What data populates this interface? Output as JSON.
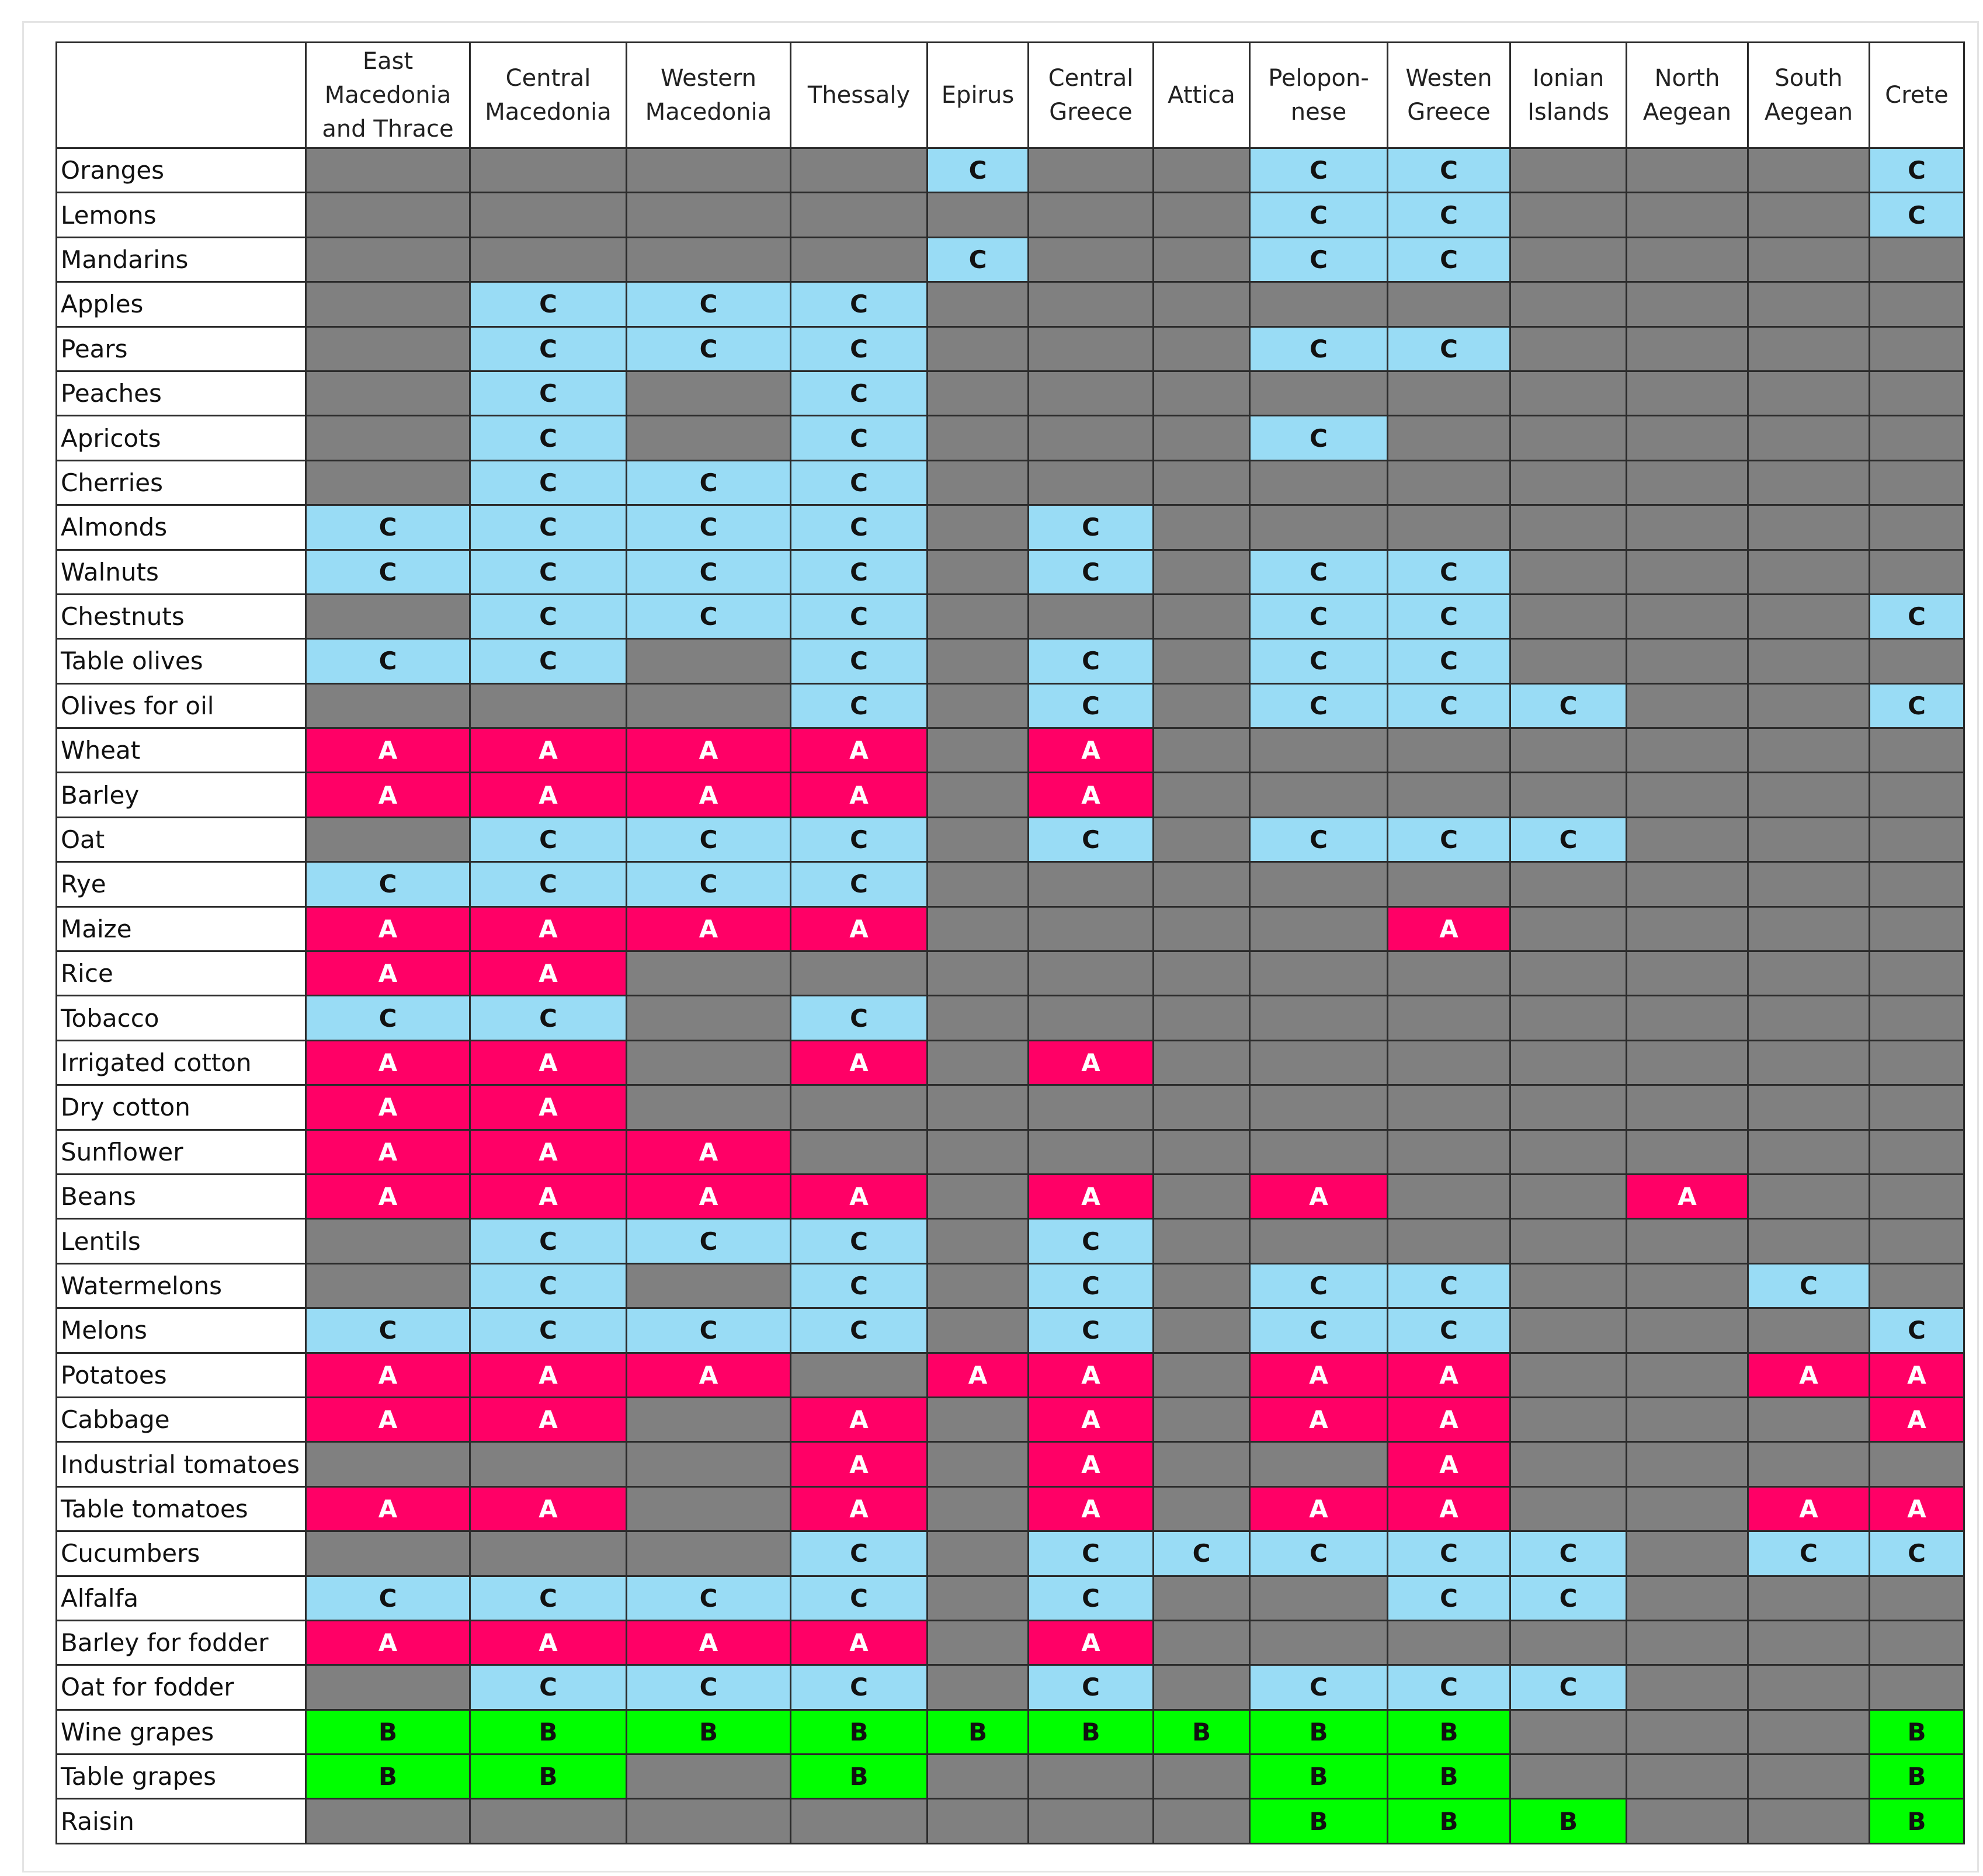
{
  "table": {
    "header": [
      "East\nMacedonia\nand Thrace",
      "Central\nMacedonia",
      "Western\nMacedonia",
      "Thessaly",
      "Epirus",
      "Central\nGreece",
      "Attica",
      "Pelopon-\nnese",
      "Westen\nGreece",
      "Ionian\nIslands",
      "North\nAegean",
      "South\nAegean",
      "Crete"
    ],
    "rows": [
      [
        "Oranges",
        null,
        null,
        null,
        null,
        "C",
        null,
        null,
        "C",
        "C",
        null,
        null,
        null,
        "C"
      ],
      [
        "Lemons",
        null,
        null,
        null,
        null,
        null,
        null,
        null,
        "C",
        "C",
        null,
        null,
        null,
        "C"
      ],
      [
        "Mandarins",
        null,
        null,
        null,
        null,
        "C",
        null,
        null,
        "C",
        "C",
        null,
        null,
        null,
        null
      ],
      [
        "Apples",
        null,
        "C",
        "C",
        "C",
        null,
        null,
        null,
        null,
        null,
        null,
        null,
        null,
        null
      ],
      [
        "Pears",
        null,
        "C",
        "C",
        "C",
        null,
        null,
        null,
        "C",
        "C",
        null,
        null,
        null,
        null
      ],
      [
        "Peaches",
        null,
        "C",
        null,
        "C",
        null,
        null,
        null,
        null,
        null,
        null,
        null,
        null,
        null
      ],
      [
        "Apricots",
        null,
        "C",
        null,
        "C",
        null,
        null,
        null,
        "C",
        null,
        null,
        null,
        null,
        null
      ],
      [
        "Cherries",
        null,
        "C",
        "C",
        "C",
        null,
        null,
        null,
        null,
        null,
        null,
        null,
        null,
        null
      ],
      [
        "Almonds",
        "C",
        "C",
        "C",
        "C",
        null,
        "C",
        null,
        null,
        null,
        null,
        null,
        null,
        null
      ],
      [
        "Walnuts",
        "C",
        "C",
        "C",
        "C",
        null,
        "C",
        null,
        "C",
        "C",
        null,
        null,
        null,
        null
      ],
      [
        "Chestnuts",
        null,
        "C",
        "C",
        "C",
        null,
        null,
        null,
        "C",
        "C",
        null,
        null,
        null,
        "C"
      ],
      [
        "Table olives",
        "C",
        "C",
        null,
        "C",
        null,
        "C",
        null,
        "C",
        "C",
        null,
        null,
        null,
        null
      ],
      [
        "Olives for oil",
        null,
        null,
        null,
        "C",
        null,
        "C",
        null,
        "C",
        "C",
        "C",
        null,
        null,
        "C"
      ],
      [
        "Wheat",
        "A",
        "A",
        "A",
        "A",
        null,
        "A",
        null,
        null,
        null,
        null,
        null,
        null,
        null
      ],
      [
        "Barley",
        "A",
        "A",
        "A",
        "A",
        null,
        "A",
        null,
        null,
        null,
        null,
        null,
        null,
        null
      ],
      [
        "Oat",
        null,
        "C",
        "C",
        "C",
        null,
        "C",
        null,
        "C",
        "C",
        "C",
        null,
        null,
        null
      ],
      [
        "Rye",
        "C",
        "C",
        "C",
        "C",
        null,
        null,
        null,
        null,
        null,
        null,
        null,
        null,
        null
      ],
      [
        "Maize",
        "A",
        "A",
        "A",
        "A",
        null,
        null,
        null,
        null,
        "A",
        null,
        null,
        null,
        null
      ],
      [
        "Rice",
        "A",
        "A",
        null,
        null,
        null,
        null,
        null,
        null,
        null,
        null,
        null,
        null,
        null
      ],
      [
        "Tobacco",
        "C",
        "C",
        null,
        "C",
        null,
        null,
        null,
        null,
        null,
        null,
        null,
        null,
        null
      ],
      [
        "Irrigated cotton",
        "A",
        "A",
        null,
        "A",
        null,
        "A",
        null,
        null,
        null,
        null,
        null,
        null,
        null
      ],
      [
        "Dry cotton",
        "A",
        "A",
        null,
        null,
        null,
        null,
        null,
        null,
        null,
        null,
        null,
        null,
        null
      ],
      [
        "Sunflower",
        "A",
        "A",
        "A",
        null,
        null,
        null,
        null,
        null,
        null,
        null,
        null,
        null,
        null
      ],
      [
        "Beans",
        "A",
        "A",
        "A",
        "A",
        null,
        "A",
        null,
        "A",
        null,
        null,
        "A",
        null,
        null
      ],
      [
        "Lentils",
        null,
        "C",
        "C",
        "C",
        null,
        "C",
        null,
        null,
        null,
        null,
        null,
        null,
        null
      ],
      [
        "Watermelons",
        null,
        "C",
        null,
        "C",
        null,
        "C",
        null,
        "C",
        "C",
        null,
        null,
        "C",
        null
      ],
      [
        "Melons",
        "C",
        "C",
        "C",
        "C",
        null,
        "C",
        null,
        "C",
        "C",
        null,
        null,
        null,
        "C"
      ],
      [
        "Potatoes",
        "A",
        "A",
        "A",
        null,
        "A",
        "A",
        null,
        "A",
        "A",
        null,
        null,
        "A",
        "A"
      ],
      [
        "Cabbage",
        "A",
        "A",
        null,
        "A",
        null,
        "A",
        null,
        "A",
        "A",
        null,
        null,
        null,
        "A"
      ],
      [
        "Industrial tomatoes",
        null,
        null,
        null,
        "A",
        null,
        "A",
        null,
        null,
        "A",
        null,
        null,
        null,
        null
      ],
      [
        "Table tomatoes",
        "A",
        "A",
        null,
        "A",
        null,
        "A",
        null,
        "A",
        "A",
        null,
        null,
        "A",
        "A"
      ],
      [
        "Cucumbers",
        null,
        null,
        null,
        "C",
        null,
        "C",
        "C",
        "C",
        "C",
        "C",
        null,
        "C",
        "C"
      ],
      [
        "Alfalfa",
        "C",
        "C",
        "C",
        "C",
        null,
        "C",
        null,
        null,
        "C",
        "C",
        null,
        null,
        null
      ],
      [
        "Barley for fodder",
        "A",
        "A",
        "A",
        "A",
        null,
        "A",
        null,
        null,
        null,
        null,
        null,
        null,
        null
      ],
      [
        "Oat for fodder",
        null,
        "C",
        "C",
        "C",
        null,
        "C",
        null,
        "C",
        "C",
        "C",
        null,
        null,
        null
      ],
      [
        "Wine grapes",
        "B",
        "B",
        "B",
        "B",
        "B",
        "B",
        "B",
        "B",
        "B",
        null,
        null,
        null,
        "B"
      ],
      [
        "Table grapes",
        "B",
        "B",
        null,
        "B",
        null,
        null,
        null,
        "B",
        "B",
        null,
        null,
        null,
        "B"
      ],
      [
        "Raisin",
        null,
        null,
        null,
        null,
        null,
        null,
        null,
        "B",
        "B",
        "B",
        null,
        null,
        "B"
      ]
    ]
  }
}
